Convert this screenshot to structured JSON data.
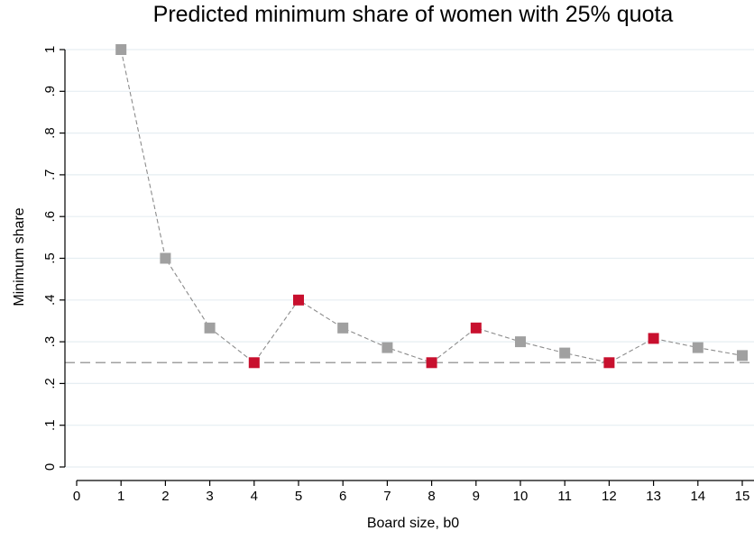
{
  "chart_data": {
    "type": "scatter",
    "title": "Predicted minimum share of women with 25% quota",
    "xlabel": "Board size, b0",
    "ylabel": "Minimum share",
    "xlim": [
      0,
      15
    ],
    "ylim": [
      0,
      1
    ],
    "x_ticks": [
      0,
      1,
      2,
      3,
      4,
      5,
      6,
      7,
      8,
      9,
      10,
      11,
      12,
      13,
      14,
      15
    ],
    "x_tick_labels": [
      "0",
      "1",
      "2",
      "3",
      "4",
      "5",
      "6",
      "7",
      "8",
      "9",
      "10",
      "11",
      "12",
      "13",
      "14",
      "15"
    ],
    "y_ticks": [
      0,
      0.1,
      0.2,
      0.3,
      0.4,
      0.5,
      0.6,
      0.7,
      0.8,
      0.9,
      1
    ],
    "y_tick_labels": [
      "0",
      ".1",
      ".2",
      ".3",
      ".4",
      ".5",
      ".6",
      ".7",
      ".8",
      ".9",
      "1"
    ],
    "grid": true,
    "reference_line_y": 0.25,
    "series": [
      {
        "x": [
          1,
          2,
          3,
          4,
          5,
          6,
          7,
          8,
          9,
          10,
          11,
          12,
          13,
          14,
          15
        ],
        "values": [
          1.0,
          0.5,
          0.333,
          0.25,
          0.4,
          0.333,
          0.286,
          0.25,
          0.333,
          0.3,
          0.273,
          0.25,
          0.308,
          0.286,
          0.267
        ],
        "highlighted": [
          false,
          false,
          false,
          true,
          true,
          false,
          false,
          true,
          true,
          false,
          false,
          true,
          true,
          false,
          false
        ]
      }
    ],
    "colors": {
      "marker_default": "#a0a0a0",
      "marker_highlight": "#c8102e",
      "connector": "#8c8c8c",
      "reference_line": "#a0a0a0",
      "grid": "#e6eef2",
      "axis": "#000000"
    }
  }
}
